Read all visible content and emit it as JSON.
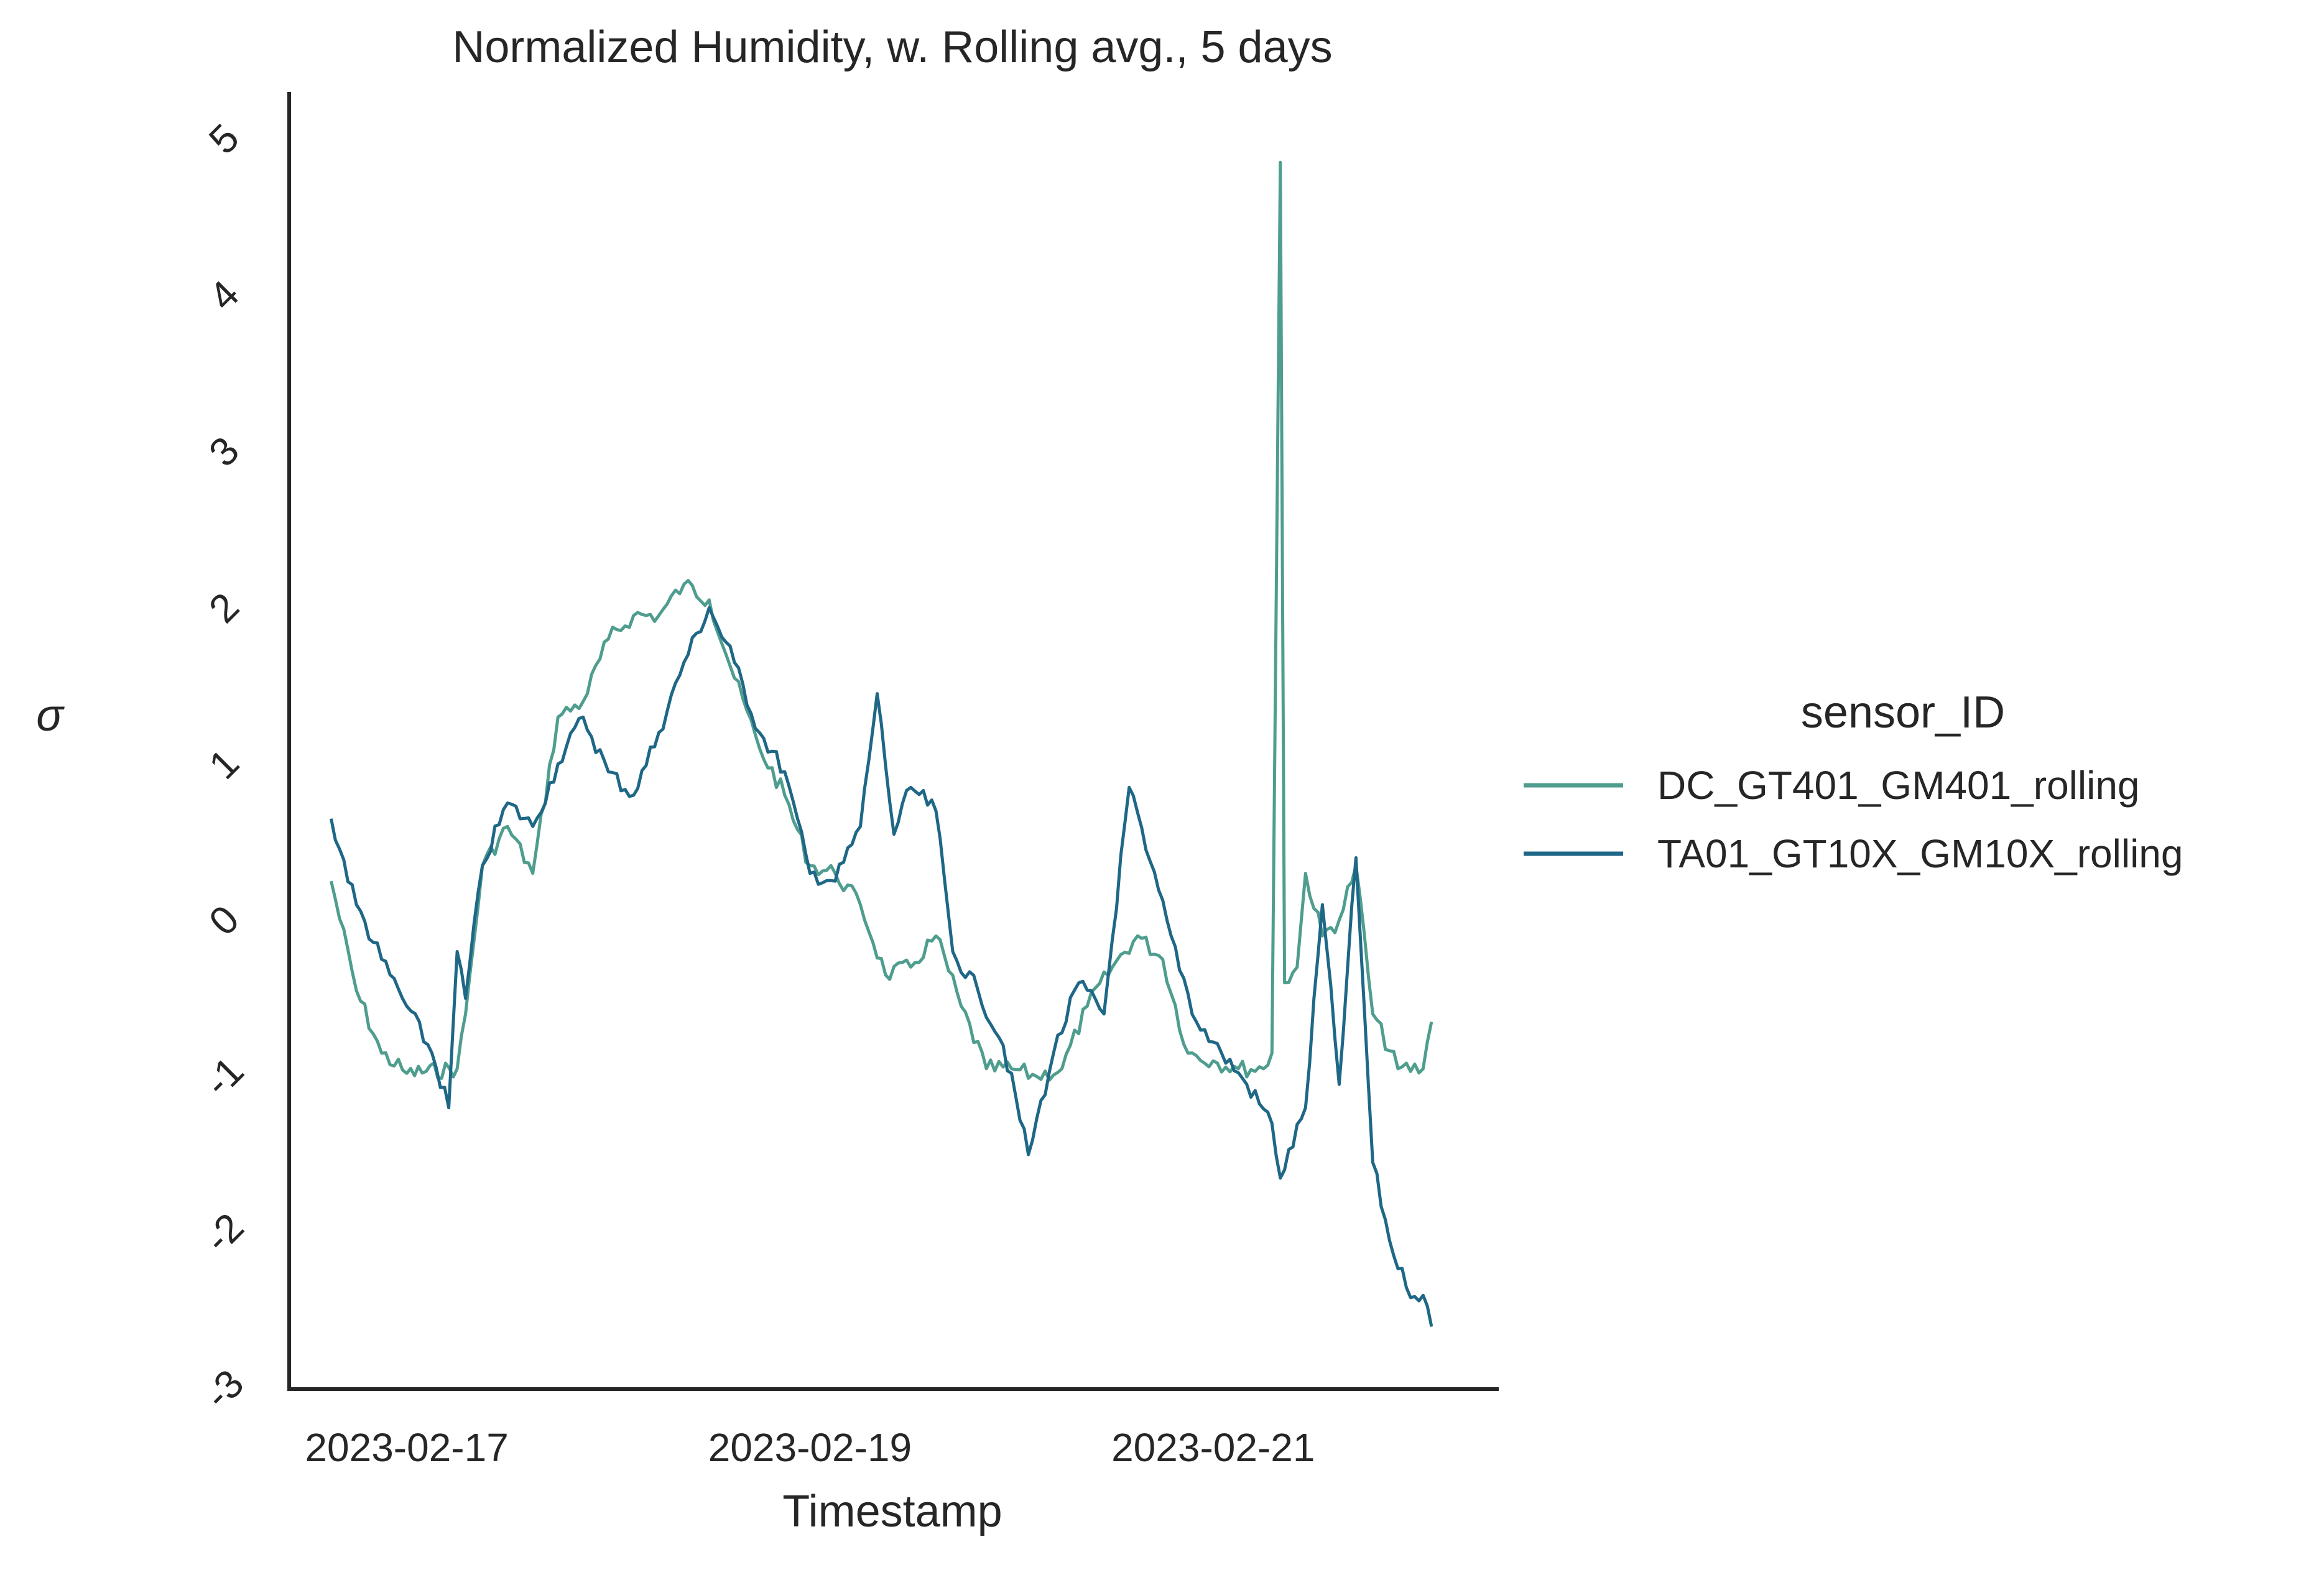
{
  "chart_data": {
    "type": "line",
    "title": "Normalized Humidity, w. Rolling avg., 5 days",
    "xlabel": "Timestamp",
    "ylabel": "σ",
    "x_range": [
      "2023-02-16 10:00",
      "2023-02-22 10:00"
    ],
    "ylim": [
      -3,
      5.3
    ],
    "x_ticks": [
      "2023-02-17",
      "2023-02-19",
      "2023-02-21"
    ],
    "y_ticks": [
      -3,
      -2,
      -1,
      0,
      1,
      2,
      3,
      4,
      5
    ],
    "grid": false,
    "legend": {
      "title": "sensor_ID",
      "placement": "right"
    },
    "series": [
      {
        "name": "DC_GT401_GM401_rolling",
        "color": "#4f9d8e",
        "points": [
          [
            "2023-02-16 15:00",
            0.25
          ],
          [
            "2023-02-16 18:00",
            -0.45
          ],
          [
            "2023-02-16 21:00",
            -0.85
          ],
          [
            "2023-02-17 00:00",
            -0.98
          ],
          [
            "2023-02-17 06:00",
            -0.95
          ],
          [
            "2023-02-17 07:00",
            -0.6
          ],
          [
            "2023-02-17 09:00",
            0.35
          ],
          [
            "2023-02-17 12:00",
            0.6
          ],
          [
            "2023-02-17 15:00",
            0.3
          ],
          [
            "2023-02-17 18:00",
            1.3
          ],
          [
            "2023-02-17 21:00",
            1.4
          ],
          [
            "2023-02-18 00:00",
            1.8
          ],
          [
            "2023-02-18 03:00",
            1.95
          ],
          [
            "2023-02-18 06:00",
            1.95
          ],
          [
            "2023-02-18 09:00",
            2.15
          ],
          [
            "2023-02-18 12:00",
            2.05
          ],
          [
            "2023-02-18 15:00",
            1.55
          ],
          [
            "2023-02-18 18:00",
            1.1
          ],
          [
            "2023-02-18 21:00",
            0.8
          ],
          [
            "2023-02-19 00:00",
            0.35
          ],
          [
            "2023-02-19 03:00",
            0.3
          ],
          [
            "2023-02-19 06:00",
            0.1
          ],
          [
            "2023-02-19 09:00",
            -0.35
          ],
          [
            "2023-02-19 12:00",
            -0.3
          ],
          [
            "2023-02-19 15:00",
            -0.1
          ],
          [
            "2023-02-19 18:00",
            -0.55
          ],
          [
            "2023-02-19 21:00",
            -0.95
          ],
          [
            "2023-02-20 00:00",
            -0.95
          ],
          [
            "2023-02-20 03:00",
            -1.0
          ],
          [
            "2023-02-20 06:00",
            -0.95
          ],
          [
            "2023-02-20 09:00",
            -0.55
          ],
          [
            "2023-02-20 12:00",
            -0.3
          ],
          [
            "2023-02-20 15:00",
            -0.1
          ],
          [
            "2023-02-20 18:00",
            -0.25
          ],
          [
            "2023-02-20 21:00",
            -0.85
          ],
          [
            "2023-02-21 00:00",
            -0.9
          ],
          [
            "2023-02-21 03:00",
            -0.95
          ],
          [
            "2023-02-21 06:00",
            -0.95
          ],
          [
            "2023-02-21 07:00",
            -0.85
          ],
          [
            "2023-02-21 08:00",
            4.85
          ],
          [
            "2023-02-21 08:30",
            -0.4
          ],
          [
            "2023-02-21 10:00",
            -0.3
          ],
          [
            "2023-02-21 11:00",
            0.3
          ],
          [
            "2023-02-21 13:00",
            -0.1
          ],
          [
            "2023-02-21 15:00",
            0.0
          ],
          [
            "2023-02-21 17:00",
            0.35
          ],
          [
            "2023-02-21 19:00",
            -0.6
          ],
          [
            "2023-02-21 22:00",
            -0.95
          ],
          [
            "2023-02-22 01:00",
            -0.95
          ],
          [
            "2023-02-22 02:00",
            -0.65
          ]
        ]
      },
      {
        "name": "TA01_GT10X_GM10X_rolling",
        "color": "#1f6787",
        "points": [
          [
            "2023-02-16 15:00",
            0.65
          ],
          [
            "2023-02-16 18:00",
            0.1
          ],
          [
            "2023-02-16 21:00",
            -0.25
          ],
          [
            "2023-02-17 00:00",
            -0.55
          ],
          [
            "2023-02-17 03:00",
            -0.85
          ],
          [
            "2023-02-17 05:00",
            -1.2
          ],
          [
            "2023-02-17 06:00",
            -0.2
          ],
          [
            "2023-02-17 07:00",
            -0.5
          ],
          [
            "2023-02-17 09:00",
            0.35
          ],
          [
            "2023-02-17 12:00",
            0.75
          ],
          [
            "2023-02-17 15:00",
            0.6
          ],
          [
            "2023-02-17 18:00",
            1.0
          ],
          [
            "2023-02-17 21:00",
            1.3
          ],
          [
            "2023-02-18 00:00",
            0.95
          ],
          [
            "2023-02-18 03:00",
            0.8
          ],
          [
            "2023-02-18 06:00",
            1.2
          ],
          [
            "2023-02-18 09:00",
            1.65
          ],
          [
            "2023-02-18 12:00",
            2.0
          ],
          [
            "2023-02-18 15:00",
            1.65
          ],
          [
            "2023-02-18 18:00",
            1.2
          ],
          [
            "2023-02-18 21:00",
            0.95
          ],
          [
            "2023-02-19 00:00",
            0.3
          ],
          [
            "2023-02-19 03:00",
            0.25
          ],
          [
            "2023-02-19 06:00",
            0.6
          ],
          [
            "2023-02-19 08:00",
            1.45
          ],
          [
            "2023-02-19 10:00",
            0.55
          ],
          [
            "2023-02-19 12:00",
            0.85
          ],
          [
            "2023-02-19 15:00",
            0.7
          ],
          [
            "2023-02-19 17:00",
            -0.2
          ],
          [
            "2023-02-19 20:00",
            -0.45
          ],
          [
            "2023-02-19 23:00",
            -0.8
          ],
          [
            "2023-02-20 02:00",
            -1.5
          ],
          [
            "2023-02-20 05:00",
            -0.85
          ],
          [
            "2023-02-20 08:00",
            -0.4
          ],
          [
            "2023-02-20 11:00",
            -0.6
          ],
          [
            "2023-02-20 14:00",
            0.85
          ],
          [
            "2023-02-20 16:00",
            0.45
          ],
          [
            "2023-02-20 19:00",
            -0.1
          ],
          [
            "2023-02-20 22:00",
            -0.65
          ],
          [
            "2023-02-21 01:00",
            -0.85
          ],
          [
            "2023-02-21 04:00",
            -1.05
          ],
          [
            "2023-02-21 07:00",
            -1.3
          ],
          [
            "2023-02-21 08:00",
            -1.65
          ],
          [
            "2023-02-21 11:00",
            -1.2
          ],
          [
            "2023-02-21 13:00",
            0.1
          ],
          [
            "2023-02-21 15:00",
            -1.05
          ],
          [
            "2023-02-21 17:00",
            0.4
          ],
          [
            "2023-02-21 19:00",
            -1.55
          ],
          [
            "2023-02-21 21:00",
            -2.05
          ],
          [
            "2023-02-21 23:00",
            -2.35
          ],
          [
            "2023-02-22 01:00",
            -2.4
          ],
          [
            "2023-02-22 02:00",
            -2.6
          ]
        ]
      }
    ]
  }
}
